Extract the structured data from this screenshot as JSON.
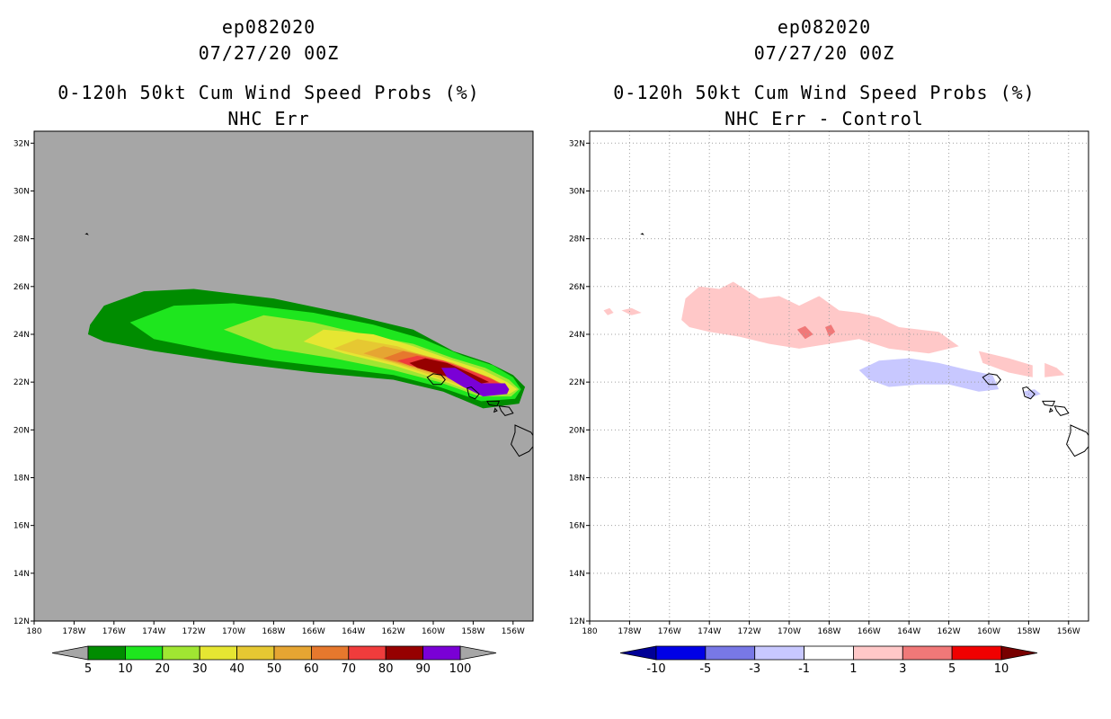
{
  "chart_data": [
    {
      "type": "heatmap",
      "title": [
        "ep082020",
        "07/27/20 00Z",
        "0-120h 50kt Cum Wind Speed Probs (%)",
        "NHC Err"
      ],
      "xlabel": "",
      "ylabel": "",
      "xlim": [
        180,
        155
      ],
      "ylim": [
        12,
        32.5
      ],
      "x_ticks": [
        "180",
        "178W",
        "176W",
        "174W",
        "172W",
        "170W",
        "168W",
        "166W",
        "164W",
        "162W",
        "160W",
        "158W",
        "156W"
      ],
      "y_ticks": [
        "12N",
        "14N",
        "16N",
        "18N",
        "20N",
        "22N",
        "24N",
        "26N",
        "28N",
        "30N",
        "32N"
      ],
      "grid": false,
      "background_color": "#a6a6a6",
      "colorbar": {
        "labels": [
          "5",
          "10",
          "20",
          "30",
          "40",
          "50",
          "60",
          "70",
          "80",
          "90",
          "100"
        ],
        "colors": [
          "#008c00",
          "#1ee61e",
          "#a0e632",
          "#e6e632",
          "#e6c832",
          "#e6a532",
          "#e6782d",
          "#f03c3c",
          "#960000",
          "#7a00d6"
        ],
        "end_colors": [
          "#a6a6a6",
          "#a6a6a6"
        ]
      },
      "contours": [
        {
          "level": 5,
          "color": "#008c00",
          "polygon": [
            [
              177.2,
              24.4
            ],
            [
              176.5,
              25.2
            ],
            [
              174.5,
              25.8
            ],
            [
              172,
              25.9
            ],
            [
              168,
              25.5
            ],
            [
              164,
              24.8
            ],
            [
              161,
              24.2
            ],
            [
              159,
              23.3
            ],
            [
              157.2,
              22.8
            ],
            [
              156,
              22.3
            ],
            [
              155.4,
              21.8
            ],
            [
              155.7,
              21.1
            ],
            [
              157.5,
              20.9
            ],
            [
              159.5,
              21.6
            ],
            [
              162,
              22.1
            ],
            [
              166,
              22.4
            ],
            [
              170,
              22.8
            ],
            [
              174,
              23.3
            ],
            [
              176.5,
              23.7
            ],
            [
              177.3,
              24.0
            ]
          ]
        },
        {
          "level": 10,
          "color": "#1ee61e",
          "polygon": [
            [
              175.2,
              24.5
            ],
            [
              173,
              25.2
            ],
            [
              170,
              25.3
            ],
            [
              166,
              24.9
            ],
            [
              163,
              24.4
            ],
            [
              160.5,
              23.8
            ],
            [
              158.5,
              23.1
            ],
            [
              157,
              22.7
            ],
            [
              156,
              22.2
            ],
            [
              155.6,
              21.7
            ],
            [
              155.9,
              21.3
            ],
            [
              157.6,
              21.2
            ],
            [
              159.7,
              21.8
            ],
            [
              162,
              22.3
            ],
            [
              165,
              22.6
            ],
            [
              168,
              22.9
            ],
            [
              171,
              23.3
            ],
            [
              174,
              23.8
            ]
          ]
        },
        {
          "level": 20,
          "color": "#a0e632",
          "polygon": [
            [
              170.5,
              24.2
            ],
            [
              168.5,
              24.8
            ],
            [
              166,
              24.5
            ],
            [
              163.5,
              24.0
            ],
            [
              161,
              23.6
            ],
            [
              159,
              23.0
            ],
            [
              157.4,
              22.6
            ],
            [
              156.2,
              22.1
            ],
            [
              155.7,
              21.7
            ],
            [
              156.1,
              21.4
            ],
            [
              157.7,
              21.4
            ],
            [
              159.7,
              22.0
            ],
            [
              162,
              22.5
            ],
            [
              165,
              23.0
            ],
            [
              168,
              23.4
            ]
          ]
        },
        {
          "level": 30,
          "color": "#e6e632",
          "polygon": [
            [
              166.5,
              23.7
            ],
            [
              165.5,
              24.2
            ],
            [
              163,
              24.0
            ],
            [
              161,
              23.5
            ],
            [
              159,
              22.9
            ],
            [
              157.5,
              22.5
            ],
            [
              156.3,
              22.0
            ],
            [
              155.8,
              21.7
            ],
            [
              156.2,
              21.5
            ],
            [
              157.7,
              21.5
            ],
            [
              159.7,
              22.1
            ],
            [
              162,
              22.7
            ],
            [
              164.5,
              23.2
            ]
          ]
        },
        {
          "level": 40,
          "color": "#e6c832",
          "polygon": [
            [
              165,
              23.4
            ],
            [
              163.8,
              23.8
            ],
            [
              161.8,
              23.5
            ],
            [
              159.8,
              22.9
            ],
            [
              157.8,
              22.4
            ],
            [
              156.4,
              21.9
            ],
            [
              156.2,
              21.6
            ],
            [
              157.8,
              21.6
            ],
            [
              159.8,
              22.2
            ],
            [
              162,
              22.8
            ],
            [
              164,
              23.2
            ]
          ]
        },
        {
          "level": 50,
          "color": "#e6a532",
          "polygon": [
            [
              163.5,
              23.2
            ],
            [
              162.5,
              23.5
            ],
            [
              160.8,
              23.2
            ],
            [
              159,
              22.8
            ],
            [
              157.5,
              22.3
            ],
            [
              156.5,
              21.9
            ],
            [
              156.3,
              21.7
            ],
            [
              157.8,
              21.7
            ],
            [
              159.8,
              22.3
            ],
            [
              161.8,
              22.8
            ]
          ]
        },
        {
          "level": 60,
          "color": "#e6782d",
          "polygon": [
            [
              162.5,
              23.0
            ],
            [
              161.5,
              23.3
            ],
            [
              160,
              23.0
            ],
            [
              158.5,
              22.6
            ],
            [
              157.2,
              22.2
            ],
            [
              156.5,
              21.9
            ],
            [
              156.4,
              21.75
            ],
            [
              157.9,
              21.8
            ],
            [
              159.9,
              22.4
            ],
            [
              161.6,
              22.8
            ]
          ]
        },
        {
          "level": 70,
          "color": "#f03c3c",
          "polygon": [
            [
              161.8,
              22.9
            ],
            [
              160.8,
              23.1
            ],
            [
              159.5,
              22.9
            ],
            [
              158.2,
              22.5
            ],
            [
              157,
              22.1
            ],
            [
              156.5,
              21.85
            ],
            [
              156.5,
              21.8
            ],
            [
              158,
              21.9
            ],
            [
              159.8,
              22.4
            ],
            [
              161.2,
              22.7
            ]
          ]
        },
        {
          "level": 80,
          "color": "#960000",
          "polygon": [
            [
              161.2,
              22.8
            ],
            [
              160.4,
              23.0
            ],
            [
              159.3,
              22.8
            ],
            [
              158.2,
              22.4
            ],
            [
              157.2,
              22.0
            ],
            [
              157.9,
              21.9
            ],
            [
              159.6,
              22.3
            ],
            [
              160.8,
              22.6
            ]
          ]
        },
        {
          "level": 90,
          "color": "#7a00d6",
          "polygon": [
            [
              159.6,
              22.6
            ],
            [
              158.9,
              22.6
            ],
            [
              158.3,
              22.3
            ],
            [
              157.6,
              21.95
            ],
            [
              156.4,
              21.95
            ],
            [
              156.2,
              21.7
            ],
            [
              156.3,
              21.5
            ],
            [
              157.5,
              21.4
            ],
            [
              158.5,
              21.8
            ],
            [
              159.3,
              22.2
            ]
          ]
        }
      ]
    },
    {
      "type": "heatmap",
      "title": [
        "ep082020",
        "07/27/20 00Z",
        "0-120h 50kt Cum Wind Speed Probs (%)",
        "NHC Err - Control"
      ],
      "xlabel": "",
      "ylabel": "",
      "xlim": [
        180,
        155
      ],
      "ylim": [
        12,
        32.5
      ],
      "x_ticks": [
        "180",
        "178W",
        "176W",
        "174W",
        "172W",
        "170W",
        "168W",
        "166W",
        "164W",
        "162W",
        "160W",
        "158W",
        "156W"
      ],
      "y_ticks": [
        "12N",
        "14N",
        "16N",
        "18N",
        "20N",
        "22N",
        "24N",
        "26N",
        "28N",
        "30N",
        "32N"
      ],
      "grid": true,
      "background_color": "#ffffff",
      "colorbar": {
        "labels": [
          "-10",
          "-5",
          "-3",
          "-1",
          "1",
          "3",
          "5",
          "10"
        ],
        "colors": [
          "#0000e6",
          "#7878e6",
          "#c8c8ff",
          "#ffffff",
          "#ffc8c8",
          "#f07878",
          "#f00000"
        ],
        "end_colors": [
          "#000096",
          "#780000"
        ]
      },
      "contours": [
        {
          "level": 1,
          "color": "#ffc8c8",
          "polygon": [
            [
              175.4,
              24.6
            ],
            [
              175.2,
              25.5
            ],
            [
              174.5,
              26.0
            ],
            [
              173.5,
              25.9
            ],
            [
              172.8,
              26.2
            ],
            [
              171.5,
              25.5
            ],
            [
              170.5,
              25.6
            ],
            [
              169.5,
              25.2
            ],
            [
              168.5,
              25.6
            ],
            [
              167.5,
              25.0
            ],
            [
              166.5,
              24.9
            ],
            [
              165.5,
              24.7
            ],
            [
              164.5,
              24.3
            ],
            [
              162.5,
              24.1
            ],
            [
              161.5,
              23.5
            ],
            [
              163,
              23.2
            ],
            [
              165,
              23.4
            ],
            [
              166.5,
              23.8
            ],
            [
              168,
              23.6
            ],
            [
              169.5,
              23.4
            ],
            [
              171,
              23.6
            ],
            [
              172.5,
              23.9
            ],
            [
              174,
              24.1
            ],
            [
              175,
              24.3
            ]
          ]
        },
        {
          "level": 1,
          "color": "#ffc8c8",
          "polygon": [
            [
              160.5,
              23.3
            ],
            [
              159,
              23.0
            ],
            [
              157.8,
              22.7
            ],
            [
              157.8,
              22.2
            ],
            [
              159,
              22.4
            ],
            [
              160.3,
              22.8
            ]
          ]
        },
        {
          "level": 1,
          "color": "#ffc8c8",
          "polygon": [
            [
              157.2,
              22.8
            ],
            [
              156.6,
              22.6
            ],
            [
              156.2,
              22.3
            ],
            [
              157.2,
              22.2
            ]
          ]
        },
        {
          "level": 1,
          "color": "#ffc8c8",
          "polygon": [
            [
              178.4,
              25.0
            ],
            [
              177.9,
              25.1
            ],
            [
              177.4,
              24.9
            ],
            [
              177.9,
              24.8
            ]
          ]
        },
        {
          "level": 1,
          "color": "#ffc8c8",
          "polygon": [
            [
              179.3,
              25.0
            ],
            [
              179.0,
              25.1
            ],
            [
              178.8,
              24.9
            ],
            [
              179.1,
              24.8
            ]
          ]
        },
        {
          "level": 3,
          "color": "#f07878",
          "polygon": [
            [
              169.6,
              24.2
            ],
            [
              169.2,
              24.35
            ],
            [
              168.8,
              24.0
            ],
            [
              169.2,
              23.8
            ]
          ]
        },
        {
          "level": 3,
          "color": "#f07878",
          "polygon": [
            [
              168.2,
              24.3
            ],
            [
              167.9,
              24.4
            ],
            [
              167.7,
              24.1
            ],
            [
              168.0,
              23.9
            ]
          ]
        },
        {
          "level": -1,
          "color": "#c8c8ff",
          "polygon": [
            [
              166.5,
              22.5
            ],
            [
              165.5,
              22.9
            ],
            [
              164,
              23.0
            ],
            [
              162.5,
              22.8
            ],
            [
              161,
              22.5
            ],
            [
              159.8,
              22.3
            ],
            [
              159.5,
              21.7
            ],
            [
              160.5,
              21.6
            ],
            [
              162,
              21.9
            ],
            [
              163.5,
              21.9
            ],
            [
              165,
              21.8
            ],
            [
              166,
              22.1
            ]
          ]
        },
        {
          "level": -1,
          "color": "#c8c8ff",
          "polygon": [
            [
              158.3,
              21.6
            ],
            [
              157.7,
              21.7
            ],
            [
              157.4,
              21.5
            ],
            [
              158.0,
              21.3
            ]
          ]
        }
      ]
    }
  ]
}
